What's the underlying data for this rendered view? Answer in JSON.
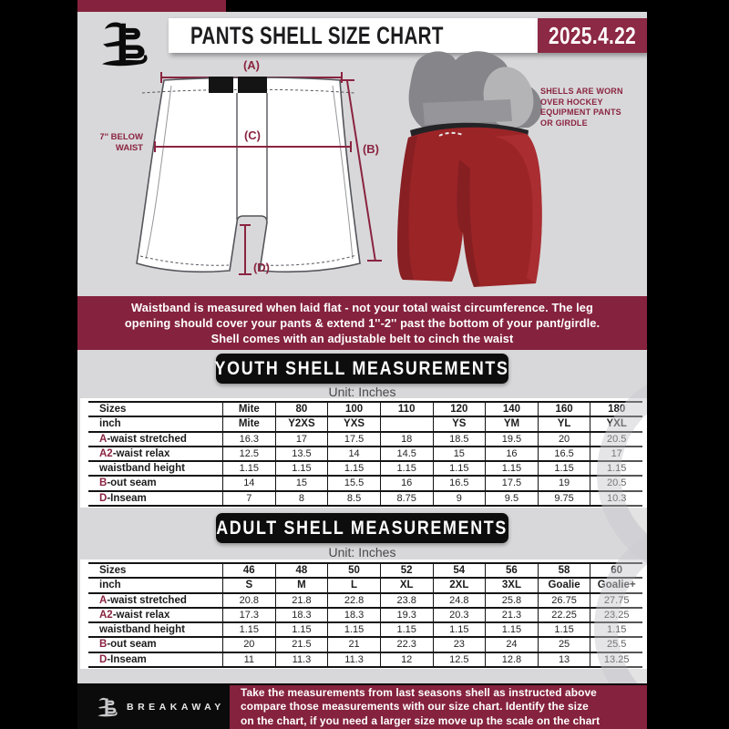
{
  "header": {
    "title": "PANTS SHELL SIZE CHART",
    "date": "2025.4.22"
  },
  "colors": {
    "maroon": "#85223e",
    "accent_maroon": "#8a2440",
    "shell_red": "#9b2427",
    "sheet_gray": "#d8d8da",
    "banner_black": "#0d0d0d"
  },
  "diagram": {
    "label_a": "(A)",
    "label_b": "(B)",
    "label_c": "(C)",
    "label_d": "(D)",
    "waist_note": [
      "7'' BELOW",
      "WAIST"
    ]
  },
  "photo_note": {
    "lines": [
      "SHELLS ARE WORN",
      "OVER HOCKEY",
      "EQUIPMENT PANTS",
      "OR GIRDLE"
    ]
  },
  "info_banner": {
    "lines": [
      "Waistband is measured when laid flat - not your total waist circumference. The leg",
      "opening should cover your pants & extend 1''-2'' past the bottom of your pant/girdle.",
      "Shell comes with an adjustable belt to cinch the waist"
    ]
  },
  "sections": {
    "youth": {
      "heading": "YOUTH SHELL MEASUREMENTS",
      "unit": "Unit: Inches",
      "table": {
        "rows": [
          {
            "label": "Sizes",
            "header": true,
            "values": [
              "Mite",
              "80",
              "100",
              "110",
              "120",
              "140",
              "160",
              "180"
            ]
          },
          {
            "label": "inch",
            "header": true,
            "values": [
              "Mite",
              "Y2XS",
              "YXS",
              "",
              "YS",
              "YM",
              "YL",
              "YXL"
            ]
          },
          {
            "prefix": "A",
            "label": "-waist stretched",
            "values": [
              "16.3",
              "17",
              "17.5",
              "18",
              "18.5",
              "19.5",
              "20",
              "20.5"
            ]
          },
          {
            "prefix": "A2",
            "label": "-waist relax",
            "values": [
              "12.5",
              "13.5",
              "14",
              "14.5",
              "15",
              "16",
              "16.5",
              "17"
            ]
          },
          {
            "label": "waistband height",
            "values": [
              "1.15",
              "1.15",
              "1.15",
              "1.15",
              "1.15",
              "1.15",
              "1.15",
              "1.15"
            ]
          },
          {
            "prefix": "B",
            "label": "-out seam",
            "values": [
              "14",
              "15",
              "15.5",
              "16",
              "16.5",
              "17.5",
              "19",
              "20.5"
            ]
          },
          {
            "prefix": "D",
            "label": "-Inseam",
            "values": [
              "7",
              "8",
              "8.5",
              "8.75",
              "9",
              "9.5",
              "9.75",
              "10.3"
            ]
          }
        ]
      }
    },
    "adult": {
      "heading": "ADULT SHELL MEASUREMENTS",
      "unit": "Unit: Inches",
      "table": {
        "rows": [
          {
            "label": "Sizes",
            "header": true,
            "values": [
              "46",
              "48",
              "50",
              "52",
              "54",
              "56",
              "58",
              "60"
            ]
          },
          {
            "label": "inch",
            "header": true,
            "values": [
              "S",
              "M",
              "L",
              "XL",
              "2XL",
              "3XL",
              "Goalie",
              "Goalie+"
            ]
          },
          {
            "prefix": "A",
            "label": "-waist stretched",
            "values": [
              "20.8",
              "21.8",
              "22.8",
              "23.8",
              "24.8",
              "25.8",
              "26.75",
              "27.75"
            ]
          },
          {
            "prefix": "A2",
            "label": "-waist relax",
            "values": [
              "17.3",
              "18.3",
              "18.3",
              "19.3",
              "20.3",
              "21.3",
              "22.25",
              "23.25"
            ]
          },
          {
            "label": "waistband height",
            "values": [
              "1.15",
              "1.15",
              "1.15",
              "1.15",
              "1.15",
              "1.15",
              "1.15",
              "1.15"
            ]
          },
          {
            "prefix": "B",
            "label": "-out seam",
            "values": [
              "20",
              "21.5",
              "21",
              "22.3",
              "23",
              "24",
              "25",
              "25.5"
            ]
          },
          {
            "prefix": "D",
            "label": "-Inseam",
            "values": [
              "11",
              "11.3",
              "11.3",
              "12",
              "12.5",
              "12.8",
              "13",
              "13.25"
            ]
          }
        ]
      }
    }
  },
  "footer": {
    "brand": "BREAKAWAY",
    "lines": [
      "Take the measurements from last seasons shell as instructed above",
      "compare those measurements with our size chart. Identify the size",
      "on the chart, if you need a larger size move up the scale on the chart"
    ]
  }
}
